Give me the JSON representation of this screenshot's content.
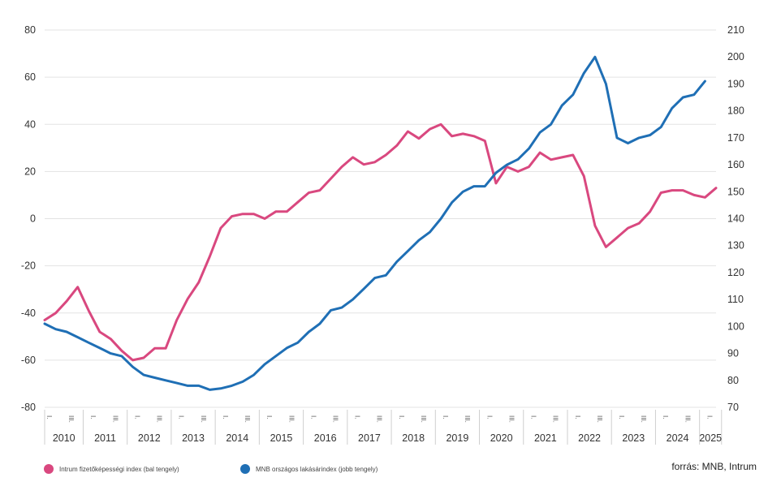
{
  "chart_data": {
    "type": "line",
    "title": "",
    "xlabel": "",
    "ylabel": "",
    "ylim_left": [
      -80,
      80
    ],
    "ylim_right": [
      70,
      210
    ],
    "y_ticks_left": [
      "80",
      "60",
      "40",
      "20",
      "0",
      "-20",
      "-40",
      "-60",
      "-80"
    ],
    "y_ticks_right": [
      "210",
      "200",
      "190",
      "180",
      "170",
      "160",
      "150",
      "140",
      "130",
      "120",
      "110",
      "100",
      "90",
      "80",
      "70"
    ],
    "years": [
      "2010",
      "2011",
      "2012",
      "2013",
      "2014",
      "2015",
      "2016",
      "2017",
      "2018",
      "2019",
      "2020",
      "2021",
      "2022",
      "2023",
      "2024",
      "2025"
    ],
    "quarter_labels": [
      "I.",
      "III."
    ],
    "grid": true,
    "legend_placement": "bottom-left",
    "series": [
      {
        "name": "Intrum fizetőképességi index (bal tengely)",
        "color": "#d9487f",
        "axis": "left",
        "values": [
          -43,
          -40,
          -35,
          -29,
          -39,
          -48,
          -51,
          -56,
          -60,
          -59,
          -55,
          -55,
          -43,
          -34,
          -27,
          -16,
          -4,
          1,
          2,
          2,
          0,
          3,
          3,
          7,
          11,
          12,
          17,
          22,
          26,
          23,
          24,
          27,
          31,
          37,
          34,
          38,
          40,
          35,
          36,
          35,
          33,
          15,
          22,
          20,
          22,
          28,
          25,
          26,
          27,
          18,
          -3,
          -12,
          -8,
          -4,
          -2,
          3,
          11,
          12,
          12,
          10,
          9,
          13
        ]
      },
      {
        "name": "MNB országos lakásárindex (jobb tengely)",
        "color": "#1f6fb5",
        "axis": "right",
        "values": [
          101,
          99,
          98,
          96,
          94,
          92,
          90,
          89,
          85,
          82,
          81,
          80,
          79,
          78,
          78,
          76.5,
          77,
          78,
          79.5,
          82,
          86,
          89,
          92,
          94,
          98,
          101,
          106,
          107,
          110,
          114,
          118,
          119,
          124,
          128,
          132,
          135,
          140,
          146,
          150,
          152,
          152,
          157,
          160,
          162,
          166,
          172,
          175,
          182,
          186,
          194,
          200,
          190,
          170,
          168,
          170,
          171,
          174,
          181,
          185,
          186,
          191
        ]
      }
    ],
    "source": "forrás: MNB, Intrum"
  }
}
